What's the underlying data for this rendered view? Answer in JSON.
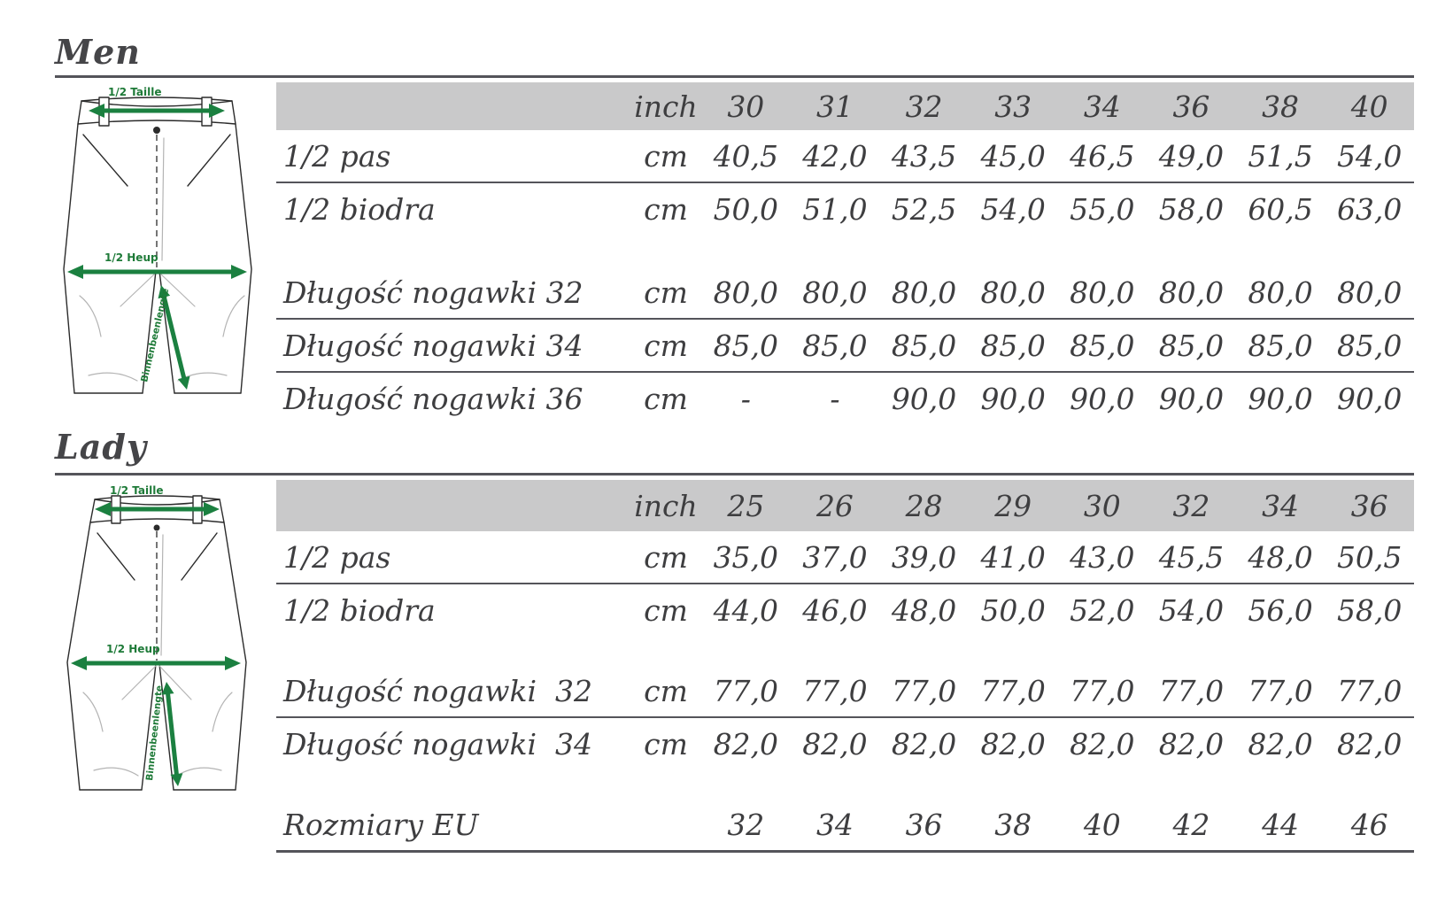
{
  "colors": {
    "header_bg": "#c9c9ca",
    "text": "#3e3e40",
    "rule": "#54545a",
    "green_arrow": "#1b8040",
    "green_label": "#1e7a38",
    "heading": "#454548"
  },
  "diagram_labels": {
    "taille": "1/2 Taille",
    "heup": "1/2 Heup",
    "inner_leg": "Binnenbeenlengte"
  },
  "sections": [
    {
      "heading": "Men",
      "unit_header": "inch",
      "sizes": [
        "30",
        "31",
        "32",
        "33",
        "34",
        "36",
        "38",
        "40"
      ],
      "rows": [
        {
          "label": "1/2 pas",
          "unit": "cm",
          "values": [
            "40,5",
            "42,0",
            "43,5",
            "45,0",
            "46,5",
            "49,0",
            "51,5",
            "54,0"
          ],
          "rule_below": true,
          "gap_after": false
        },
        {
          "label": "1/2 biodra",
          "unit": "cm",
          "values": [
            "50,0",
            "51,0",
            "52,5",
            "54,0",
            "55,0",
            "58,0",
            "60,5",
            "63,0"
          ],
          "rule_below": false,
          "gap_after": true
        },
        {
          "label": "Długość nogawki 32",
          "unit": "cm",
          "values": [
            "80,0",
            "80,0",
            "80,0",
            "80,0",
            "80,0",
            "80,0",
            "80,0",
            "80,0"
          ],
          "rule_below": true,
          "gap_after": false
        },
        {
          "label": "Długość nogawki 34",
          "unit": "cm",
          "values": [
            "85,0",
            "85,0",
            "85,0",
            "85,0",
            "85,0",
            "85,0",
            "85,0",
            "85,0"
          ],
          "rule_below": true,
          "gap_after": false
        },
        {
          "label": "Długość nogawki 36",
          "unit": "cm",
          "values": [
            "-",
            "-",
            "90,0",
            "90,0",
            "90,0",
            "90,0",
            "90,0",
            "90,0"
          ],
          "rule_below": false,
          "gap_after": false
        }
      ]
    },
    {
      "heading": "Lady",
      "unit_header": "inch",
      "sizes": [
        "25",
        "26",
        "28",
        "29",
        "30",
        "32",
        "34",
        "36"
      ],
      "rows": [
        {
          "label": "1/2 pas",
          "unit": "cm",
          "values": [
            "35,0",
            "37,0",
            "39,0",
            "41,0",
            "43,0",
            "45,5",
            "48,0",
            "50,5"
          ],
          "rule_below": true,
          "gap_after": false
        },
        {
          "label": "1/2 biodra",
          "unit": "cm",
          "values": [
            "44,0",
            "46,0",
            "48,0",
            "50,0",
            "52,0",
            "54,0",
            "56,0",
            "58,0"
          ],
          "rule_below": false,
          "gap_after": true
        },
        {
          "label": "Długość nogawki  32",
          "unit": "cm",
          "values": [
            "77,0",
            "77,0",
            "77,0",
            "77,0",
            "77,0",
            "77,0",
            "77,0",
            "77,0"
          ],
          "rule_below": true,
          "gap_after": false
        },
        {
          "label": "Długość nogawki  34",
          "unit": "cm",
          "values": [
            "82,0",
            "82,0",
            "82,0",
            "82,0",
            "82,0",
            "82,0",
            "82,0",
            "82,0"
          ],
          "rule_below": false,
          "gap_after": true
        },
        {
          "label": "Rozmiary EU",
          "unit": "",
          "values": [
            "32",
            "34",
            "36",
            "38",
            "40",
            "42",
            "44",
            "46"
          ],
          "rule_below": "strong",
          "gap_after": false
        }
      ]
    }
  ]
}
